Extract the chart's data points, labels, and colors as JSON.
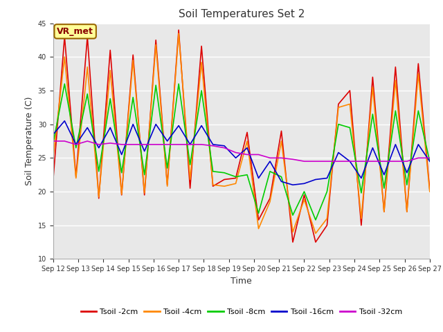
{
  "title": "Soil Temperatures Set 2",
  "xlabel": "Time",
  "ylabel": "Soil Temperature (C)",
  "ylim": [
    10,
    45
  ],
  "yticks": [
    10,
    15,
    20,
    25,
    30,
    35,
    40,
    45
  ],
  "fig_bg_color": "#ffffff",
  "plot_bg_color": "#e8e8e8",
  "grid_color": "#ffffff",
  "annotation_text": "VR_met",
  "annotation_bg": "#ffff99",
  "annotation_border": "#996600",
  "legend_labels": [
    "Tsoil -2cm",
    "Tsoil -4cm",
    "Tsoil -8cm",
    "Tsoil -16cm",
    "Tsoil -32cm"
  ],
  "legend_colors": [
    "#dd0000",
    "#ff8800",
    "#00cc00",
    "#0000cc",
    "#cc00cc"
  ],
  "line_colors": [
    "#dd0000",
    "#ff8800",
    "#00cc00",
    "#0000cc",
    "#cc00cc"
  ],
  "x_ticklabels": [
    "Sep 12",
    "Sep 13",
    "Sep 14",
    "Sep 15",
    "Sep 16",
    "Sep 17",
    "Sep 18",
    "Sep 19",
    "Sep 20",
    "Sep 21",
    "Sep 22",
    "Sep 23",
    "Sep 24",
    "Sep 25",
    "Sep 26",
    "Sep 27"
  ],
  "t2cm": [
    21.8,
    43.0,
    22.2,
    43.0,
    19.0,
    41.0,
    19.5,
    40.3,
    19.5,
    42.5,
    21.0,
    44.0,
    20.5,
    41.6,
    20.8,
    21.8,
    22.0,
    28.8,
    15.8,
    19.0,
    29.0,
    12.5,
    19.5,
    12.5,
    15.0,
    33.0,
    35.0,
    15.0,
    37.0,
    17.0,
    38.5,
    17.0,
    39.0,
    20.3
  ],
  "t4cm": [
    25.0,
    40.0,
    22.0,
    38.5,
    19.2,
    38.0,
    19.6,
    39.5,
    19.8,
    41.8,
    20.8,
    43.5,
    21.8,
    39.2,
    21.0,
    20.8,
    21.2,
    27.5,
    14.5,
    18.5,
    27.5,
    14.0,
    18.8,
    13.8,
    16.0,
    32.5,
    33.0,
    16.0,
    35.5,
    17.0,
    36.5,
    17.0,
    37.5,
    20.0
  ],
  "t8cm": [
    27.2,
    36.0,
    26.5,
    34.5,
    23.0,
    33.8,
    22.8,
    34.0,
    22.5,
    35.8,
    23.5,
    36.0,
    24.0,
    35.0,
    23.0,
    22.8,
    22.2,
    22.5,
    16.8,
    23.0,
    22.2,
    16.5,
    20.0,
    15.8,
    20.0,
    30.0,
    29.5,
    19.8,
    31.5,
    20.5,
    32.0,
    21.0,
    32.0,
    24.5
  ],
  "t16cm": [
    28.5,
    30.5,
    27.0,
    29.5,
    26.5,
    29.5,
    25.5,
    30.0,
    26.0,
    30.0,
    27.5,
    29.8,
    27.0,
    29.8,
    27.0,
    26.8,
    25.0,
    26.5,
    22.0,
    24.5,
    21.5,
    21.0,
    21.2,
    21.8,
    22.0,
    25.8,
    24.5,
    22.0,
    26.5,
    22.5,
    27.0,
    22.8,
    27.0,
    24.5
  ],
  "t32cm": [
    27.5,
    27.5,
    27.0,
    27.5,
    27.0,
    27.2,
    27.0,
    27.0,
    27.0,
    27.0,
    27.0,
    27.0,
    27.0,
    27.0,
    26.8,
    26.5,
    25.8,
    25.5,
    25.5,
    25.0,
    25.0,
    24.8,
    24.5,
    24.5,
    24.5,
    24.5,
    24.5,
    24.5,
    24.5,
    24.5,
    24.5,
    24.5,
    25.0,
    25.0
  ]
}
